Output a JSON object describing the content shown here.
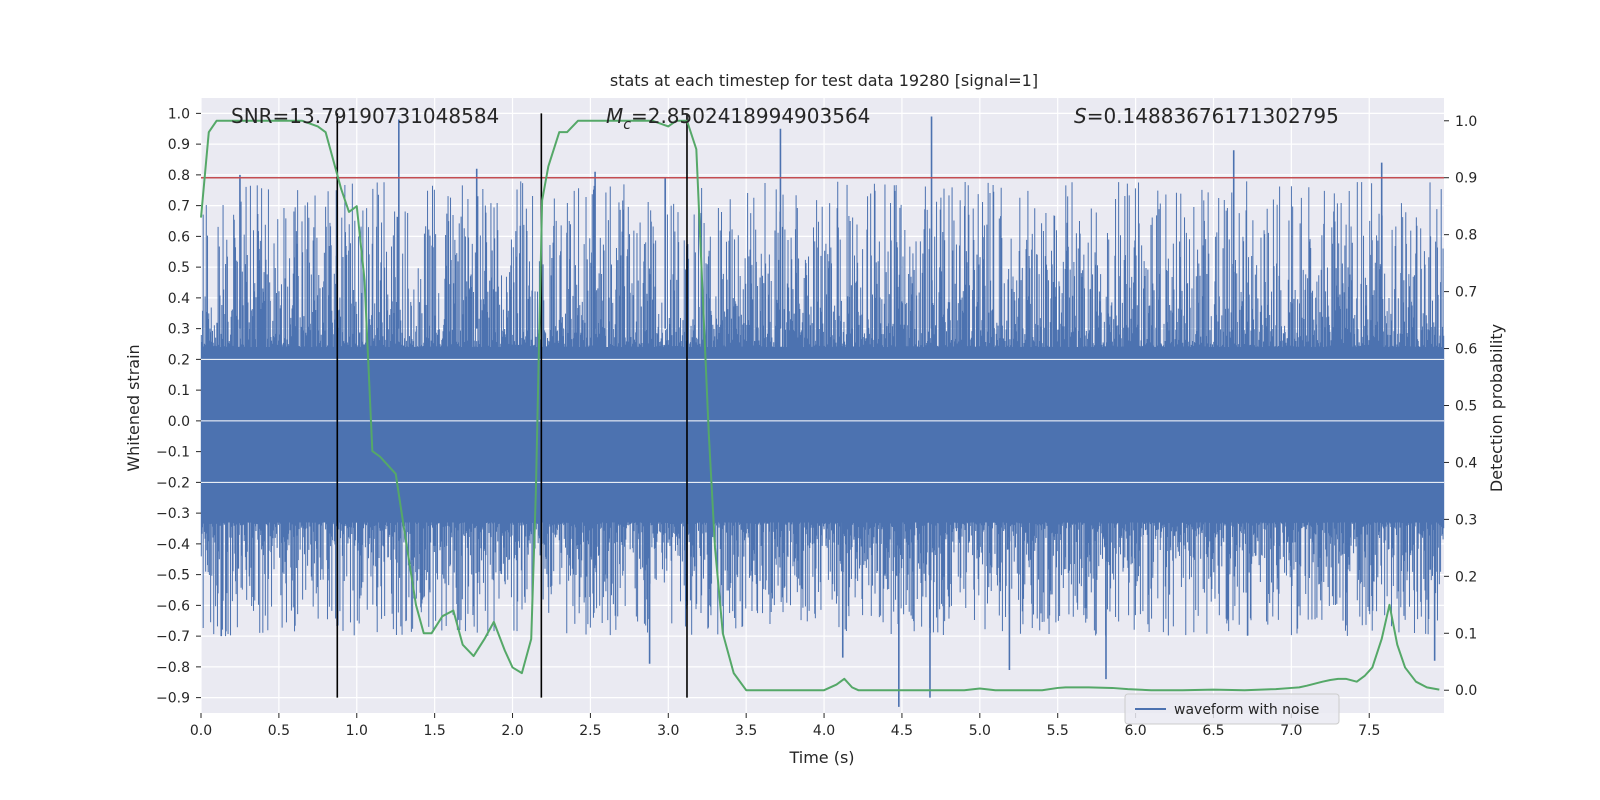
{
  "chart_data": {
    "type": "line",
    "title": "stats at each timestep for test data 19280 [signal=1]",
    "xlabel": "Time (s)",
    "ylabel": "Whitened strain",
    "y2label": "Detection probability",
    "xlim": [
      0.0,
      7.98
    ],
    "ylim": [
      -0.95,
      1.05
    ],
    "y2lim": [
      -0.04,
      1.04
    ],
    "xticks": [
      0.0,
      0.5,
      1.0,
      1.5,
      2.0,
      2.5,
      3.0,
      3.5,
      4.0,
      4.5,
      5.0,
      5.5,
      6.0,
      6.5,
      7.0,
      7.5
    ],
    "yticks": [
      -0.9,
      -0.8,
      -0.7,
      -0.6,
      -0.5,
      -0.4,
      -0.3,
      -0.2,
      -0.1,
      0.0,
      0.1,
      0.2,
      0.3,
      0.4,
      0.5,
      0.6,
      0.7,
      0.8,
      0.9,
      1.0
    ],
    "y2ticks": [
      0.0,
      0.1,
      0.2,
      0.3,
      0.4,
      0.5,
      0.6,
      0.7,
      0.8,
      0.9,
      1.0
    ],
    "grid": true,
    "legend": {
      "position": "lower-right",
      "entries": [
        "waveform with noise"
      ]
    },
    "annotations": {
      "snr": "SNR=13.79190731048584",
      "mc_symbol": "M",
      "mc_sub": "c",
      "mc_value": "=2.8502418994903564",
      "s_symbol": "S",
      "s_value": "=0.14883676171302795"
    },
    "vertical_lines": [
      0.875,
      2.185,
      3.12
    ],
    "threshold": {
      "axis": "y2",
      "value": 0.9,
      "color": "#c44e52"
    },
    "strain_series": {
      "name": "waveform with noise",
      "color": "#4c72b0",
      "sample_count": 2000,
      "envelope_upper_typical": 0.4,
      "envelope_lower_typical": -0.45,
      "dense_band": [
        -0.33,
        0.24
      ],
      "peaks": [
        {
          "x": 1.27,
          "y": 0.98
        },
        {
          "x": 1.77,
          "y": 0.82
        },
        {
          "x": 2.53,
          "y": 0.81
        },
        {
          "x": 3.72,
          "y": 0.95
        },
        {
          "x": 4.69,
          "y": 0.99
        },
        {
          "x": 6.63,
          "y": 0.88
        },
        {
          "x": 7.58,
          "y": 0.84
        },
        {
          "x": 0.25,
          "y": 0.8
        },
        {
          "x": 0.87,
          "y": 0.75
        },
        {
          "x": 2.98,
          "y": 0.79
        },
        {
          "x": 4.48,
          "y": -0.93
        },
        {
          "x": 4.68,
          "y": -0.9
        },
        {
          "x": 5.81,
          "y": -0.84
        },
        {
          "x": 2.88,
          "y": -0.79
        },
        {
          "x": 5.19,
          "y": -0.81
        },
        {
          "x": 7.92,
          "y": -0.78
        },
        {
          "x": 0.13,
          "y": -0.7
        },
        {
          "x": 4.12,
          "y": -0.77
        }
      ]
    },
    "probability_series": {
      "name": "detection probability",
      "color": "#55a868",
      "x": [
        0.0,
        0.05,
        0.1,
        0.2,
        0.35,
        0.5,
        0.65,
        0.75,
        0.8,
        0.85,
        0.9,
        0.95,
        1.0,
        1.05,
        1.07,
        1.1,
        1.15,
        1.25,
        1.3,
        1.38,
        1.43,
        1.48,
        1.55,
        1.62,
        1.68,
        1.75,
        1.82,
        1.88,
        1.95,
        2.0,
        2.06,
        2.12,
        2.15,
        2.19,
        2.23,
        2.3,
        2.35,
        2.42,
        2.5,
        2.6,
        2.75,
        2.9,
        3.0,
        3.05,
        3.12,
        3.18,
        3.22,
        3.26,
        3.3,
        3.35,
        3.42,
        3.5,
        3.7,
        3.9,
        4.0,
        4.08,
        4.13,
        4.18,
        4.22,
        4.35,
        4.45,
        4.5,
        4.6,
        4.7,
        4.8,
        4.9,
        5.0,
        5.1,
        5.2,
        5.3,
        5.4,
        5.5,
        5.55,
        5.7,
        5.85,
        5.95,
        6.1,
        6.3,
        6.5,
        6.7,
        6.9,
        7.0,
        7.05,
        7.1,
        7.2,
        7.25,
        7.3,
        7.35,
        7.42,
        7.47,
        7.52,
        7.58,
        7.63,
        7.68,
        7.73,
        7.8,
        7.87,
        7.95
      ],
      "y": [
        0.83,
        0.98,
        1.0,
        1.0,
        1.0,
        1.0,
        1.0,
        0.99,
        0.98,
        0.93,
        0.88,
        0.84,
        0.85,
        0.72,
        0.6,
        0.42,
        0.41,
        0.38,
        0.29,
        0.15,
        0.1,
        0.1,
        0.13,
        0.14,
        0.08,
        0.06,
        0.09,
        0.12,
        0.07,
        0.04,
        0.03,
        0.09,
        0.35,
        0.86,
        0.92,
        0.98,
        0.98,
        1.0,
        1.0,
        1.0,
        1.0,
        1.0,
        0.99,
        1.0,
        1.0,
        0.95,
        0.7,
        0.45,
        0.25,
        0.1,
        0.03,
        0.0,
        0.0,
        0.0,
        0.0,
        0.01,
        0.02,
        0.005,
        0.0,
        0.0,
        0.0,
        0.0,
        0.0,
        0.0,
        0.0,
        0.0,
        0.003,
        0.0,
        0.0,
        0.0,
        0.0,
        0.004,
        0.005,
        0.005,
        0.004,
        0.002,
        0.0,
        0.0,
        0.001,
        0.0,
        0.002,
        0.004,
        0.005,
        0.008,
        0.015,
        0.018,
        0.02,
        0.02,
        0.015,
        0.025,
        0.04,
        0.09,
        0.15,
        0.08,
        0.04,
        0.015,
        0.005,
        0.001
      ]
    }
  }
}
